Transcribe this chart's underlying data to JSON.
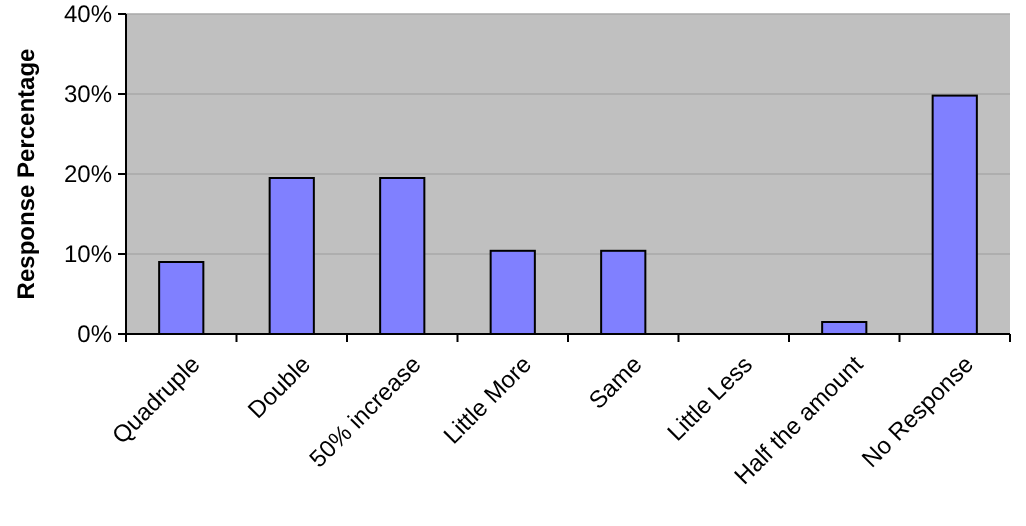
{
  "chart_data": {
    "type": "bar",
    "ylabel": "Response Percentage",
    "categories": [
      "Quadruple",
      "Double",
      "50% increase",
      "Little More",
      "Same",
      "Little Less",
      "Half the amount",
      "No Response"
    ],
    "values": [
      9.0,
      19.5,
      19.5,
      10.4,
      10.4,
      0,
      1.5,
      29.8
    ],
    "color": "#8080ff",
    "ylim": [
      0,
      40
    ],
    "yticks": [
      {
        "value": 0,
        "label": "0%"
      },
      {
        "value": 10,
        "label": "10%"
      },
      {
        "value": 20,
        "label": "20%"
      },
      {
        "value": 30,
        "label": "30%"
      },
      {
        "value": 40,
        "label": "40%"
      }
    ],
    "grid": "y"
  }
}
